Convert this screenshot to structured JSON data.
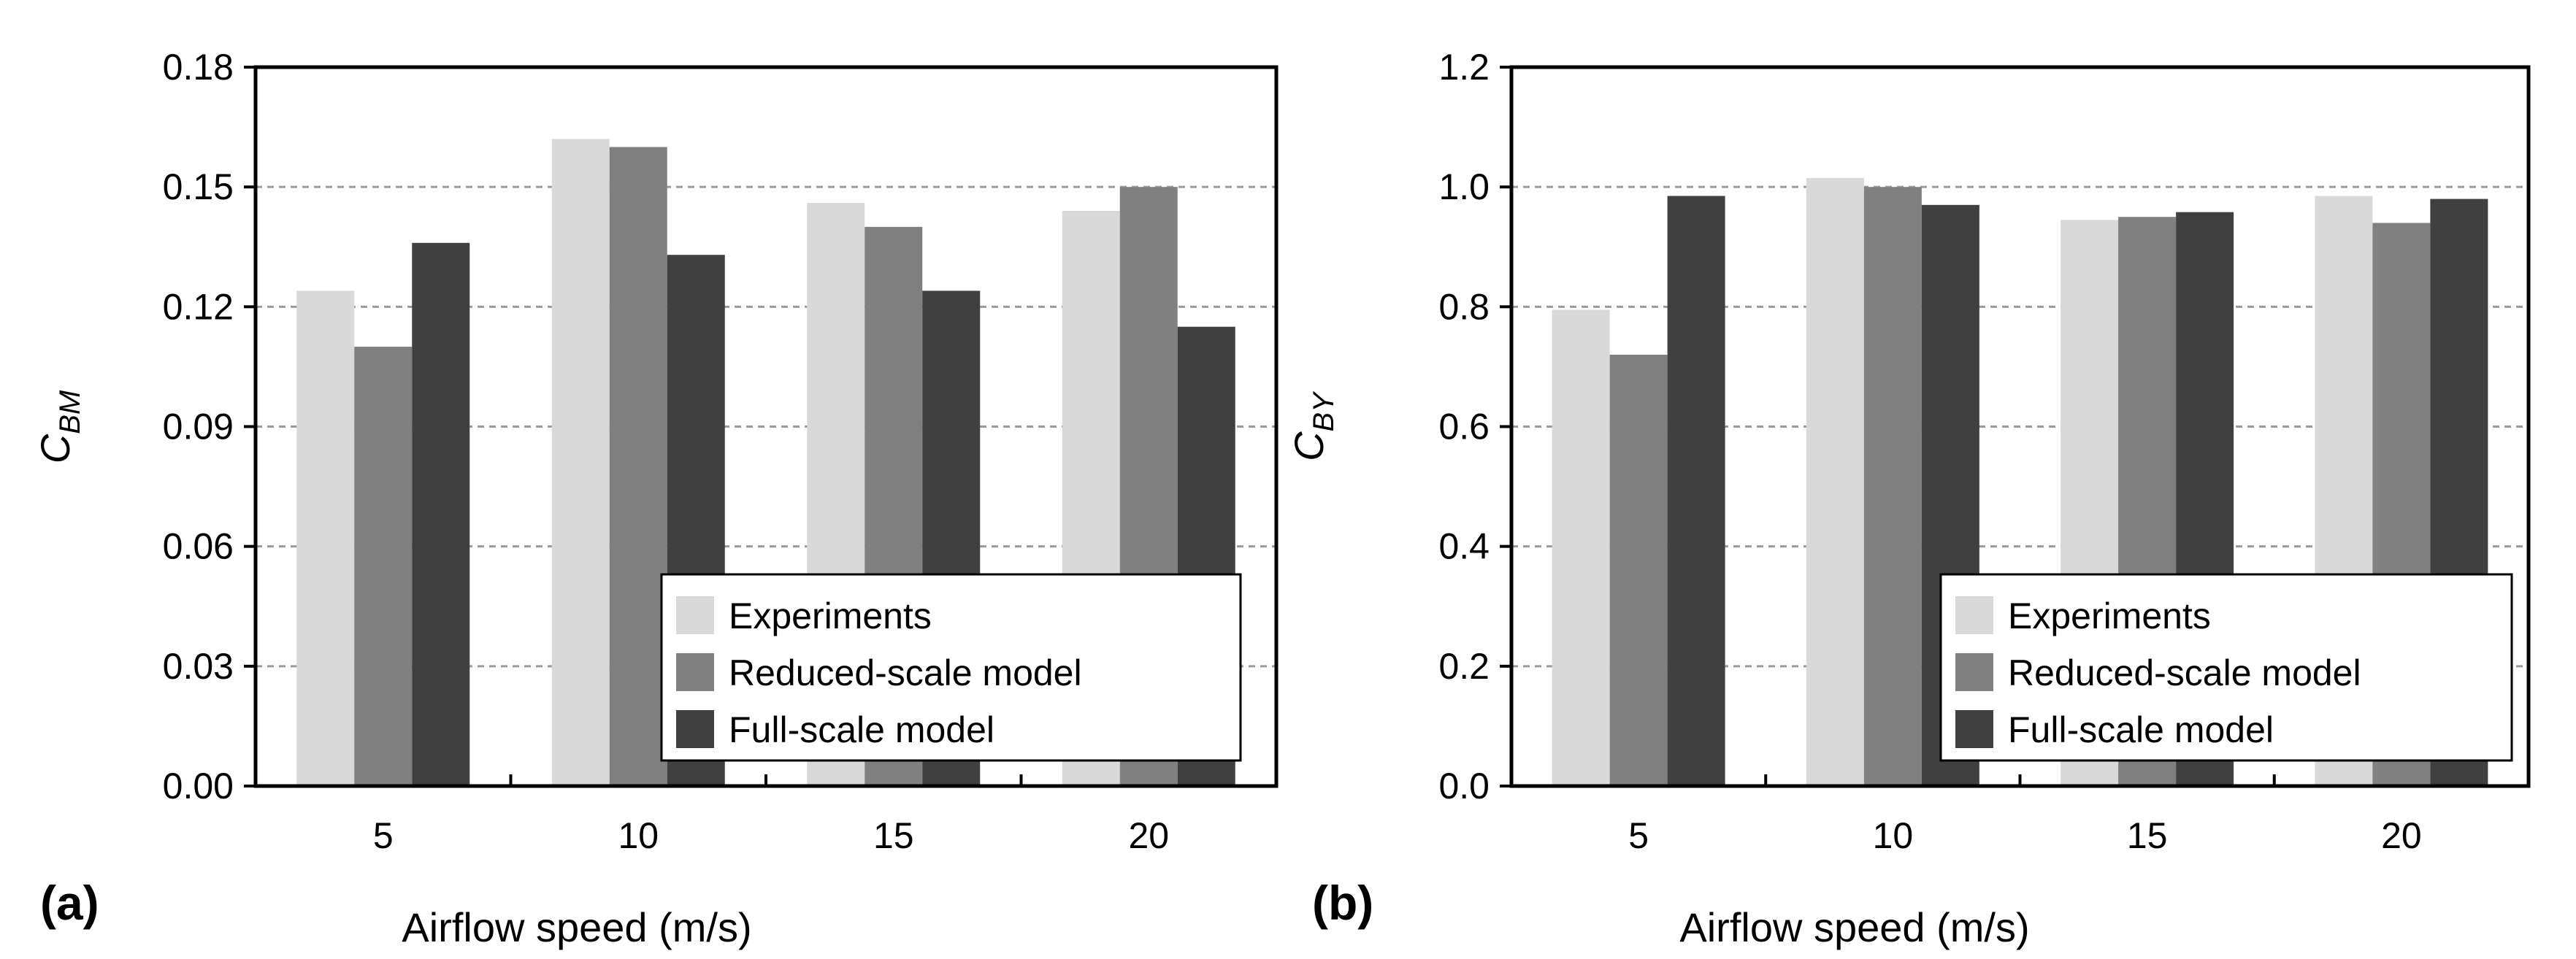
{
  "chart_data": [
    {
      "type": "bar",
      "panel_label": "(a)",
      "ylabel": "C",
      "ylabel_sub": "BM",
      "xlabel": "Airflow speed (m/s)",
      "categories": [
        "5",
        "10",
        "15",
        "20"
      ],
      "ylim": [
        0,
        0.18
      ],
      "yticks": [
        "0.00",
        "0.03",
        "0.06",
        "0.09",
        "0.12",
        "0.15",
        "0.18"
      ],
      "ytick_values": [
        0,
        0.03,
        0.06,
        0.09,
        0.12,
        0.15,
        0.18
      ],
      "grid": true,
      "legend_position": "bottom-right",
      "series": [
        {
          "name": "Experiments",
          "color": "#d9d9d9",
          "values": [
            0.124,
            0.162,
            0.146,
            0.144
          ]
        },
        {
          "name": "Reduced-scale model",
          "color": "#808080",
          "values": [
            0.11,
            0.16,
            0.14,
            0.15
          ]
        },
        {
          "name": "Full-scale model",
          "color": "#404040",
          "values": [
            0.136,
            0.133,
            0.124,
            0.115
          ]
        }
      ]
    },
    {
      "type": "bar",
      "panel_label": "(b)",
      "ylabel": "C",
      "ylabel_sub": "BY",
      "xlabel": "Airflow speed (m/s)",
      "categories": [
        "5",
        "10",
        "15",
        "20"
      ],
      "ylim": [
        0,
        1.2
      ],
      "yticks": [
        "0.0",
        "0.2",
        "0.4",
        "0.6",
        "0.8",
        "1.0",
        "1.2"
      ],
      "ytick_values": [
        0,
        0.2,
        0.4,
        0.6,
        0.8,
        1.0,
        1.2
      ],
      "grid": true,
      "legend_position": "bottom-right",
      "series": [
        {
          "name": "Experiments",
          "color": "#d9d9d9",
          "values": [
            0.795,
            1.015,
            0.945,
            0.985
          ]
        },
        {
          "name": "Reduced-scale model",
          "color": "#808080",
          "values": [
            0.72,
            1.0,
            0.95,
            0.94
          ]
        },
        {
          "name": "Full-scale model",
          "color": "#404040",
          "values": [
            0.985,
            0.97,
            0.958,
            0.98
          ]
        }
      ]
    }
  ]
}
